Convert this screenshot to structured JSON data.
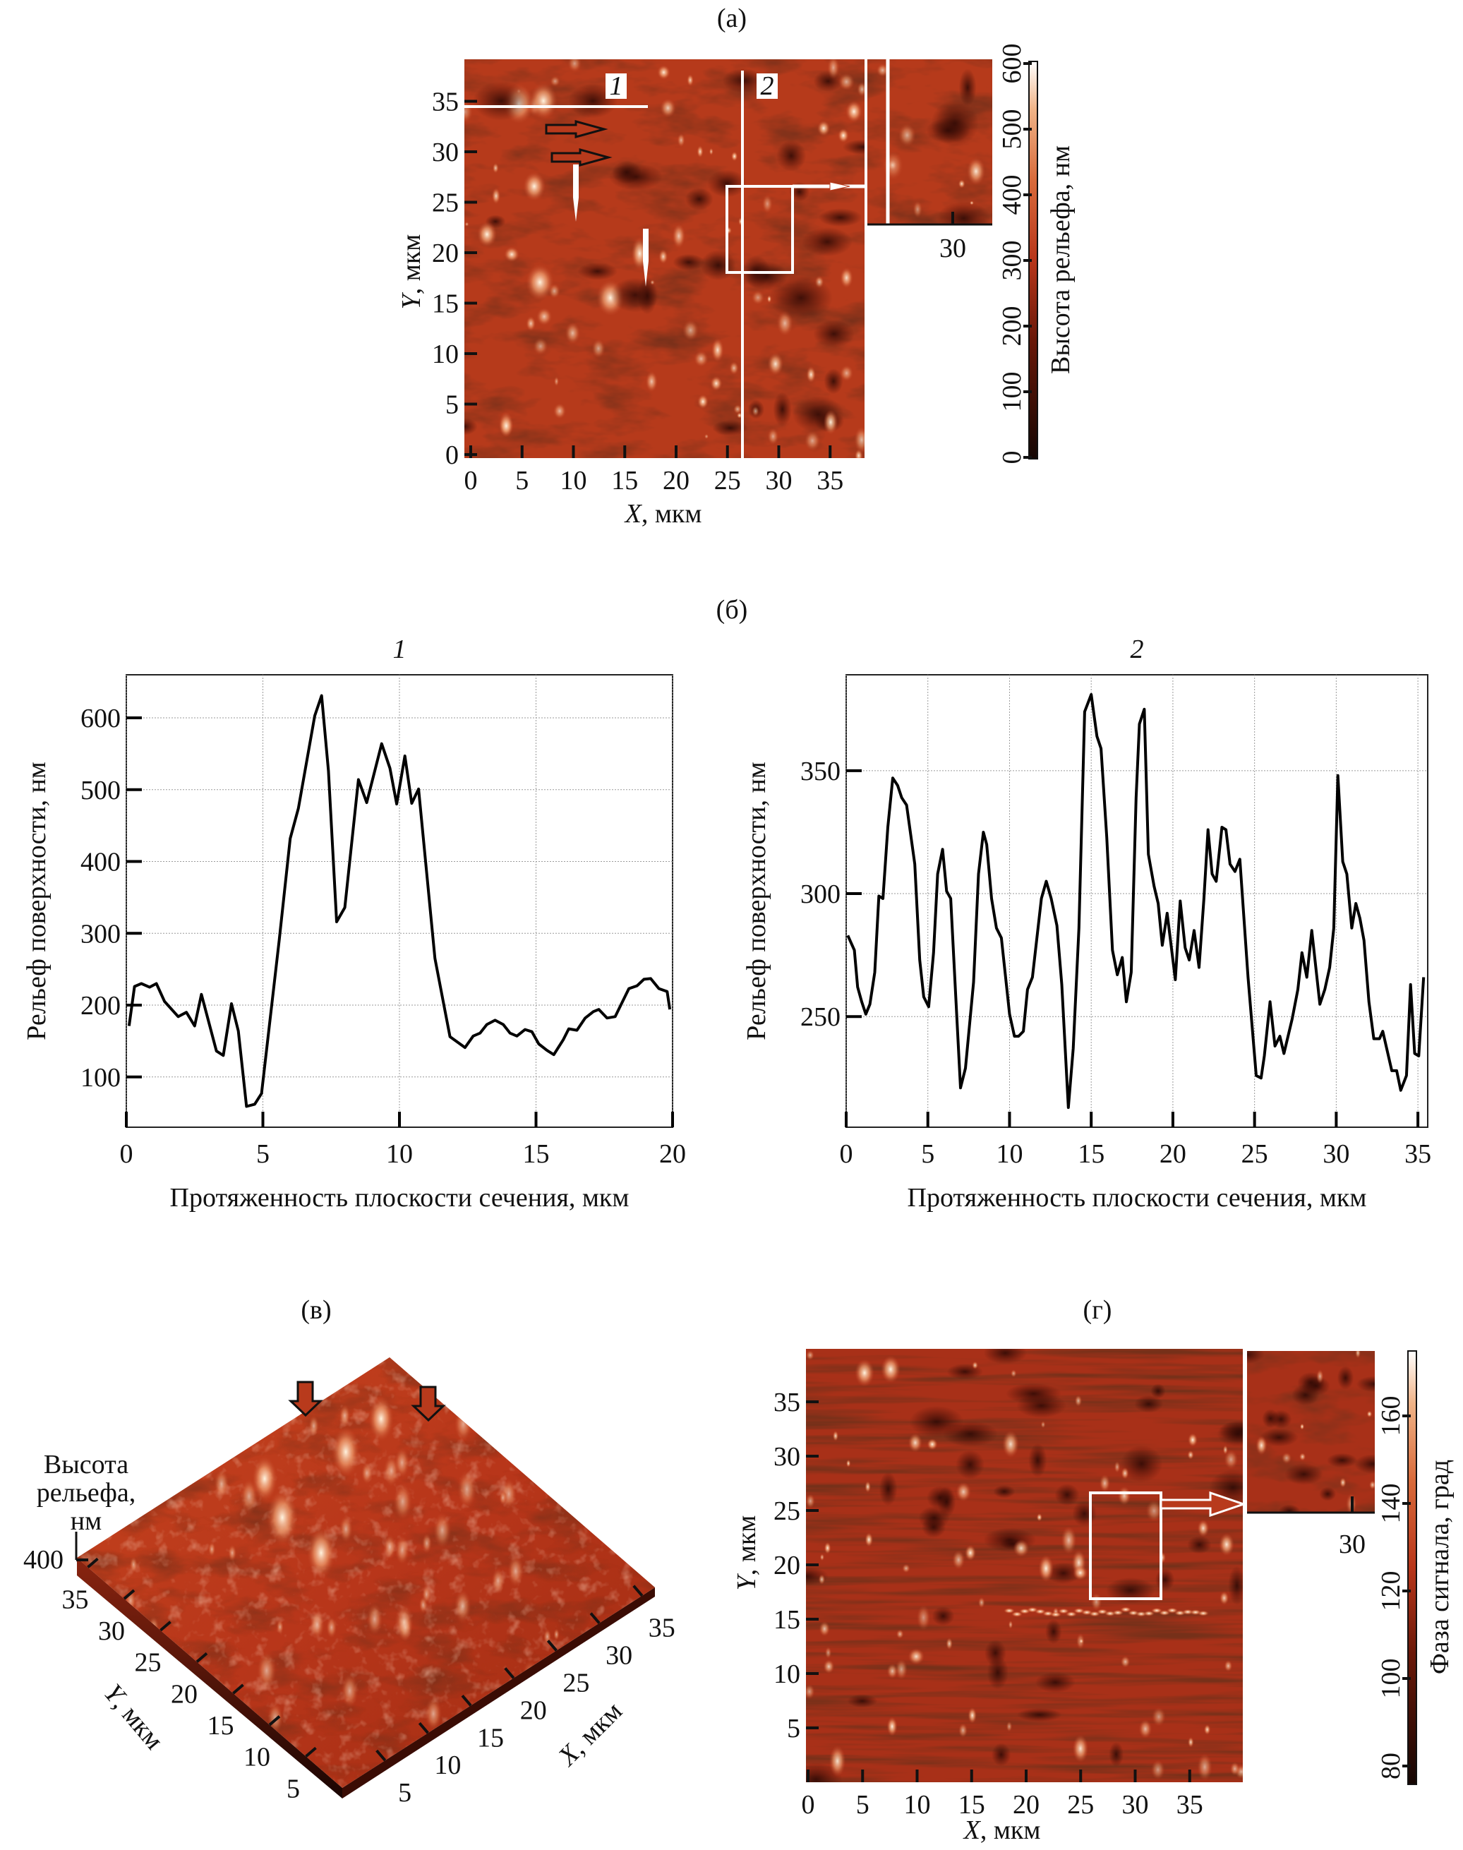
{
  "colors": {
    "map_base": "#b63a1b",
    "map_dark": "#2a0a04",
    "map_bright": "#fff2dc",
    "line": "#000000",
    "grid": "#9a9a9a"
  },
  "panel_a": {
    "label": "(а)",
    "x_ticks": [
      "0",
      "5",
      "10",
      "15",
      "20",
      "25",
      "30",
      "35"
    ],
    "y_ticks": [
      "0",
      "5",
      "10",
      "15",
      "20",
      "25",
      "30",
      "35"
    ],
    "x_var": "X",
    "x_unit": ", мкм",
    "y_var": "Y",
    "y_unit": ", мкм",
    "line1_label": "1",
    "line2_label": "2",
    "inset_tick": "30",
    "colorbar_ticks": [
      "0",
      "100",
      "200",
      "300",
      "400",
      "500",
      "600"
    ],
    "colorbar_title": "Высота рельефа, нм"
  },
  "panel_b": {
    "label": "(б)"
  },
  "chart_data": [
    {
      "type": "line",
      "title": "1",
      "xlabel": "Протяженность плоскости сечения, мкм",
      "ylabel": "Рельеф поверхности, нм",
      "xlim": [
        0,
        20
      ],
      "ylim": [
        30,
        660
      ],
      "x_ticks": [
        0,
        5,
        10,
        15,
        20
      ],
      "y_ticks": [
        100,
        200,
        300,
        400,
        500,
        600
      ],
      "grid": true,
      "x": [
        0.1,
        0.3,
        0.55,
        0.85,
        1.1,
        1.4,
        1.9,
        2.2,
        2.5,
        2.75,
        3.3,
        3.55,
        3.85,
        4.1,
        4.4,
        4.7,
        4.95,
        5.6,
        6.0,
        6.3,
        6.9,
        7.15,
        7.4,
        7.7,
        8.0,
        8.5,
        8.8,
        9.35,
        9.65,
        9.9,
        10.2,
        10.45,
        10.7,
        11.3,
        11.85,
        12.4,
        12.7,
        12.95,
        13.2,
        13.5,
        13.8,
        14.05,
        14.3,
        14.6,
        14.85,
        15.1,
        15.4,
        15.65,
        16.0,
        16.2,
        16.5,
        16.8,
        17.1,
        17.3,
        17.6,
        17.9,
        18.4,
        18.7,
        18.95,
        19.2,
        19.5,
        19.8,
        19.9
      ],
      "y": [
        171,
        226,
        230,
        225,
        230,
        205,
        184,
        190,
        171,
        215,
        136,
        130,
        202,
        164,
        59,
        62,
        77,
        291,
        432,
        474,
        603,
        631,
        526,
        316,
        336,
        514,
        482,
        564,
        530,
        480,
        547,
        481,
        501,
        265,
        156,
        141,
        157,
        161,
        173,
        179,
        173,
        161,
        157,
        166,
        163,
        146,
        137,
        131,
        152,
        167,
        165,
        182,
        191,
        194,
        182,
        184,
        223,
        227,
        236,
        237,
        223,
        219,
        194
      ]
    },
    {
      "type": "line",
      "title": "2",
      "xlabel": "Протяженность плоскости сечения, мкм",
      "ylabel": "Рельеф поверхности, нм",
      "xlim": [
        0,
        35.6
      ],
      "ylim": [
        205,
        389
      ],
      "x_ticks": [
        0,
        5,
        10,
        15,
        20,
        25,
        30,
        35
      ],
      "y_ticks": [
        250,
        300,
        350
      ],
      "grid": true,
      "x": [
        0.1,
        0.5,
        0.7,
        0.95,
        1.2,
        1.45,
        1.75,
        2.0,
        2.25,
        2.55,
        2.85,
        3.15,
        3.4,
        3.7,
        4.2,
        4.5,
        4.75,
        5.05,
        5.35,
        5.6,
        5.9,
        6.15,
        6.4,
        6.7,
        7.0,
        7.3,
        7.8,
        8.1,
        8.4,
        8.6,
        8.9,
        9.2,
        9.5,
        10.0,
        10.3,
        10.55,
        10.85,
        11.1,
        11.4,
        11.95,
        12.25,
        12.55,
        12.9,
        13.2,
        13.6,
        13.9,
        14.25,
        14.6,
        15.0,
        15.35,
        15.6,
        15.95,
        16.3,
        16.6,
        16.9,
        17.15,
        17.45,
        17.75,
        17.95,
        18.25,
        18.5,
        18.85,
        19.1,
        19.35,
        19.65,
        20.15,
        20.45,
        20.75,
        21.0,
        21.3,
        21.6,
        21.9,
        22.15,
        22.4,
        22.65,
        23.0,
        23.25,
        23.5,
        23.8,
        24.1,
        24.6,
        25.1,
        25.4,
        25.6,
        25.95,
        26.25,
        26.55,
        26.8,
        27.3,
        27.65,
        27.9,
        28.2,
        28.5,
        29.0,
        29.3,
        29.6,
        29.85,
        30.1,
        30.4,
        30.65,
        30.95,
        31.2,
        31.45,
        31.7,
        32.0,
        32.3,
        32.65,
        32.85,
        33.4,
        33.7,
        33.95,
        34.3,
        34.55,
        34.8,
        35.05,
        35.35
      ],
      "y": [
        283,
        277,
        262,
        256,
        251,
        255,
        268,
        299,
        298,
        327,
        347,
        344,
        339,
        336,
        312,
        273,
        258,
        254,
        276,
        308,
        318,
        301,
        298,
        259,
        221,
        229,
        264,
        308,
        325,
        320,
        298,
        286,
        282,
        251,
        242,
        242,
        244,
        261,
        266,
        298,
        305,
        298,
        287,
        263,
        213,
        237,
        286,
        374,
        381,
        364,
        359,
        323,
        277,
        267,
        274,
        256,
        268,
        339,
        369,
        375,
        316,
        303,
        296,
        279,
        292,
        265,
        297,
        278,
        273,
        285,
        270,
        298,
        326,
        308,
        305,
        327,
        326,
        312,
        309,
        314,
        266,
        226,
        225,
        234,
        256,
        238,
        242,
        235,
        249,
        261,
        276,
        266,
        285,
        255,
        261,
        270,
        286,
        348,
        313,
        308,
        286,
        296,
        290,
        281,
        256,
        241,
        241,
        244,
        228,
        228,
        220,
        226,
        263,
        235,
        234,
        266
      ]
    }
  ],
  "panel_v": {
    "label": "(в)",
    "z_title_line1": "Высота",
    "z_title_line2": "рельефа,",
    "z_title_line3": "нм",
    "z_tick": "400",
    "x_ticks": [
      "5",
      "10",
      "15",
      "20",
      "25",
      "30",
      "35"
    ],
    "y_ticks": [
      "35",
      "30",
      "25",
      "20",
      "15",
      "10",
      "5"
    ],
    "x_var": "X",
    "x_unit": ", мкм",
    "y_var": "Y",
    "y_unit": ", мкм"
  },
  "panel_g": {
    "label": "(г)",
    "x_ticks": [
      "0",
      "5",
      "10",
      "15",
      "20",
      "25",
      "30",
      "35"
    ],
    "y_ticks": [
      "5",
      "10",
      "15",
      "20",
      "25",
      "30",
      "35"
    ],
    "x_var": "X",
    "x_unit": ", мкм",
    "y_var": "Y",
    "y_unit": ", мкм",
    "inset_tick": "30",
    "colorbar_ticks": [
      "80",
      "100",
      "120",
      "140",
      "160"
    ],
    "colorbar_title": "Фаза сигнала, град"
  }
}
